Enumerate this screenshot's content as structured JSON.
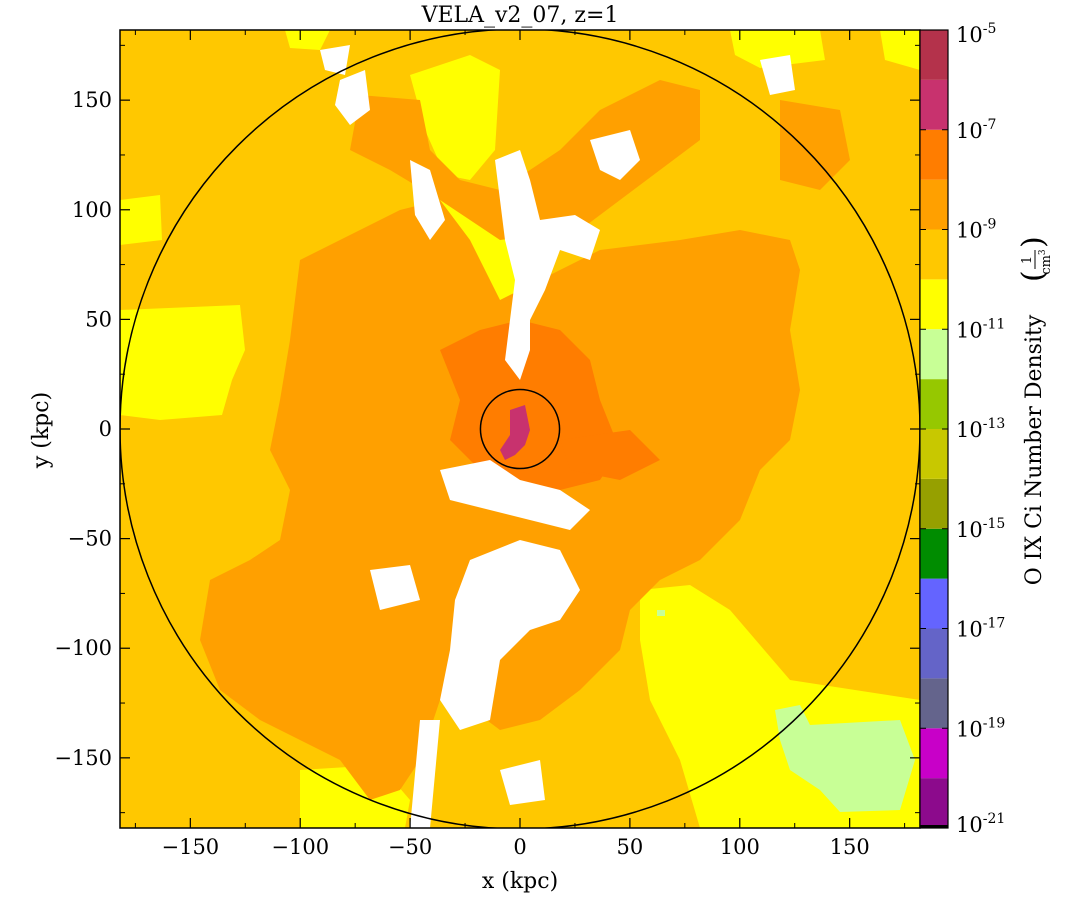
{
  "chart_data": {
    "type": "heatmap",
    "title": "VELA_v2_07, z=1",
    "xlabel": "x  (kpc)",
    "ylabel": "y  (kpc)",
    "colorbar_label": "O IX Ci Number Density",
    "colorbar_unit_numerator": "1",
    "colorbar_unit_denominator": "cm",
    "colorbar_unit_exponent": "3",
    "xlim": [
      -182,
      182
    ],
    "ylim": [
      -182,
      182
    ],
    "xticks": [
      -150,
      -100,
      -50,
      0,
      50,
      100,
      150
    ],
    "yticks": [
      -150,
      -100,
      -50,
      0,
      50,
      100,
      150
    ],
    "xtick_labels": [
      "−150",
      "−100",
      "−50",
      "0",
      "50",
      "100",
      "150"
    ],
    "ytick_labels": [
      "−150",
      "−100",
      "−50",
      "0",
      "50",
      "100",
      "150"
    ],
    "colorbar": {
      "scale": "log",
      "range_exponent": [
        -21,
        -5
      ],
      "tick_exponents": [
        -21,
        -19,
        -17,
        -15,
        -13,
        -11,
        -9,
        -7,
        -5
      ],
      "tick_labels": [
        {
          "base": "10",
          "exp": "-21"
        },
        {
          "base": "10",
          "exp": "-19"
        },
        {
          "base": "10",
          "exp": "-17"
        },
        {
          "base": "10",
          "exp": "-15"
        },
        {
          "base": "10",
          "exp": "-13"
        },
        {
          "base": "10",
          "exp": "-11"
        },
        {
          "base": "10",
          "exp": "-9"
        },
        {
          "base": "10",
          "exp": "-7"
        },
        {
          "base": "10",
          "exp": "-5"
        }
      ],
      "bands": [
        {
          "from": -21,
          "to": -20,
          "color": "#8c0a8c"
        },
        {
          "from": -20,
          "to": -19,
          "color": "#c800c8"
        },
        {
          "from": -19,
          "to": -18,
          "color": "#64648c"
        },
        {
          "from": -18,
          "to": -17,
          "color": "#6464c8"
        },
        {
          "from": -17,
          "to": -16,
          "color": "#6464ff"
        },
        {
          "from": -16,
          "to": -15,
          "color": "#008c00"
        },
        {
          "from": -15,
          "to": -14,
          "color": "#96a000"
        },
        {
          "from": -14,
          "to": -13,
          "color": "#c8c800"
        },
        {
          "from": -13,
          "to": -12,
          "color": "#96c800"
        },
        {
          "from": -12,
          "to": -11,
          "color": "#c8ff96"
        },
        {
          "from": -11,
          "to": -10,
          "color": "#ffff00"
        },
        {
          "from": -10,
          "to": -9,
          "color": "#ffc800"
        },
        {
          "from": -9,
          "to": -8,
          "color": "#ffa000"
        },
        {
          "from": -8,
          "to": -7,
          "color": "#ff7d00"
        },
        {
          "from": -7,
          "to": -6,
          "color": "#c8326e"
        },
        {
          "from": -6,
          "to": -5,
          "color": "#b4324b"
        }
      ]
    },
    "circles": [
      {
        "cx": 0,
        "cy": 0,
        "r": 182
      },
      {
        "cx": 0,
        "cy": 0,
        "r": 18
      }
    ],
    "regions_colors": {
      "background": "#ffc800",
      "mid": "#ffa000",
      "high": "#ff7d00",
      "low": "#ffff00",
      "lowest": "#c8ff96",
      "core": "#c8326e",
      "empty": "#ffffff"
    }
  }
}
